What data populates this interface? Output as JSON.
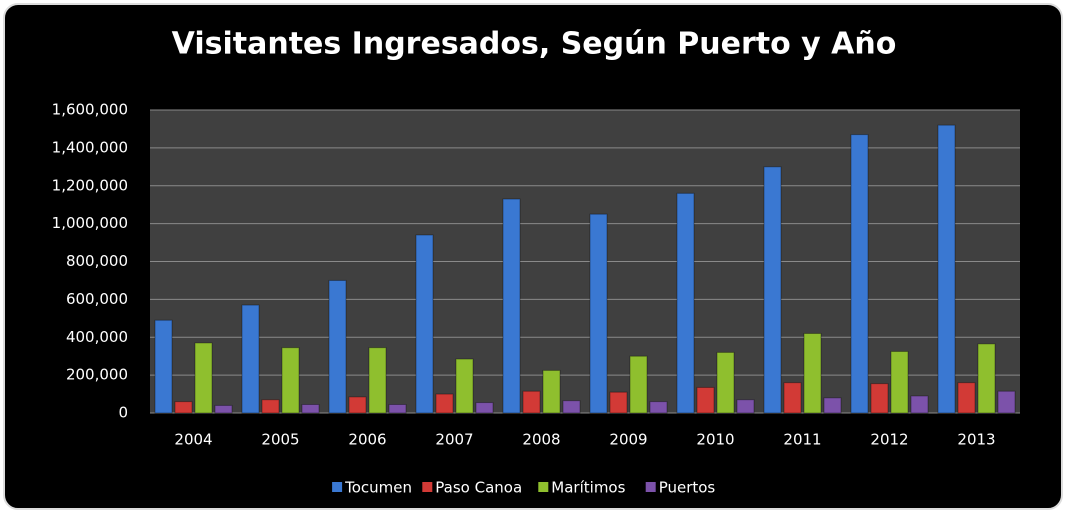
{
  "chart_data": {
    "type": "bar",
    "title": "Visitantes Ingresados, Según Puerto y Año",
    "categories": [
      "2004",
      "2005",
      "2006",
      "2007",
      "2008",
      "2009",
      "2010",
      "2011",
      "2012",
      "2013"
    ],
    "series": [
      {
        "name": "Tocumen",
        "color": "#3a78d2",
        "values": [
          490000,
          570000,
          700000,
          940000,
          1130000,
          1050000,
          1160000,
          1300000,
          1470000,
          1520000
        ]
      },
      {
        "name": "Paso Canoa",
        "color": "#d23a36",
        "values": [
          60000,
          70000,
          85000,
          100000,
          115000,
          110000,
          135000,
          160000,
          155000,
          160000
        ]
      },
      {
        "name": "Marítimos",
        "color": "#8fbf2e",
        "values": [
          370000,
          345000,
          345000,
          285000,
          225000,
          300000,
          320000,
          420000,
          325000,
          365000
        ]
      },
      {
        "name": "Puertos",
        "color": "#7c52aa",
        "values": [
          40000,
          45000,
          45000,
          55000,
          65000,
          60000,
          70000,
          80000,
          90000,
          115000
        ]
      }
    ],
    "ylim": [
      0,
      1600000
    ],
    "yticks": [
      0,
      {
        "value": 200000,
        "label": "200,000"
      },
      {
        "value": 400000,
        "label": "400,000"
      },
      {
        "value": 600000,
        "label": "600,000"
      },
      {
        "value": 800000,
        "label": "800,000"
      },
      {
        "value": 1000000,
        "label": "1,000,000"
      },
      {
        "value": 1200000,
        "label": "1,200,000"
      },
      {
        "value": 1400000,
        "label": "1,400,000"
      },
      {
        "value": 1600000,
        "label": "1,600,000"
      }
    ],
    "grid": true,
    "legend": "bottom"
  }
}
